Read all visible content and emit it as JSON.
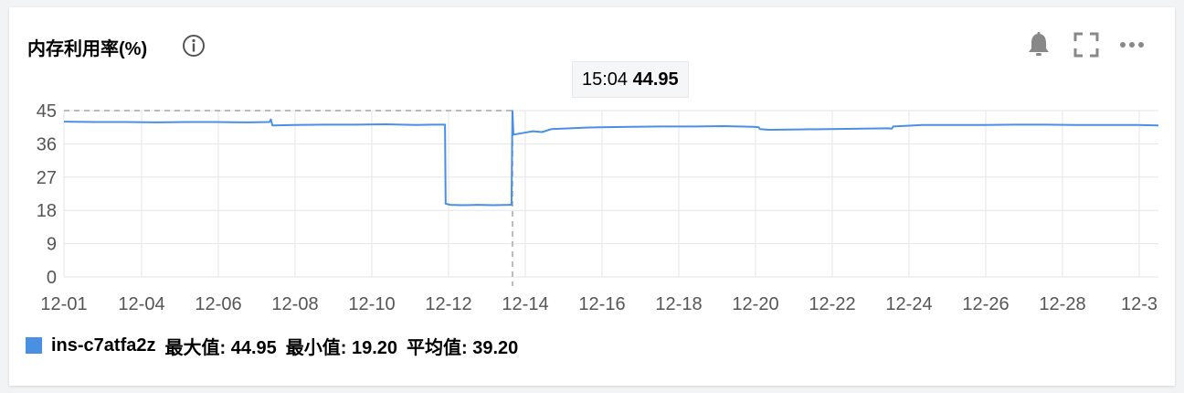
{
  "panel": {
    "title": "内存利用率(%)"
  },
  "toolbar": {
    "icons": [
      "info-icon",
      "bell-icon",
      "fullscreen-icon",
      "more-icon"
    ]
  },
  "colors": {
    "series": "#4a90e2",
    "grid": "#e6e6e6",
    "axis_text": "#555555",
    "crosshair": "#bbbbbb"
  },
  "tooltip": {
    "time": "15:04",
    "value": "44.95"
  },
  "legend": {
    "series_name": "ins-c7atfa2z",
    "max_text": "最大值: 44.95",
    "min_text": "最小值: 19.20",
    "avg_text": "平均值: 39.20"
  },
  "chart_data": {
    "type": "line",
    "title": "内存利用率(%)",
    "xlabel": "",
    "ylabel": "",
    "ylim": [
      0,
      45
    ],
    "yticks": [
      "45",
      "36",
      "27",
      "18",
      "9",
      "0"
    ],
    "xlim_days": [
      0,
      35.7
    ],
    "xticks": [
      "12-01",
      "12-04",
      "12-06",
      "12-08",
      "12-10",
      "12-12",
      "12-14",
      "12-16",
      "12-18",
      "12-20",
      "12-22",
      "12-24",
      "12-26",
      "12-28",
      "12-3"
    ],
    "grid": true,
    "legend_position": "bottom-left",
    "crosshair_x_day": 14.63,
    "series": [
      {
        "name": "ins-c7atfa2z",
        "points": [
          [
            0,
            42.0
          ],
          [
            1.0,
            41.9
          ],
          [
            2.0,
            41.9
          ],
          [
            3.0,
            41.8
          ],
          [
            4.0,
            41.9
          ],
          [
            5.0,
            41.9
          ],
          [
            6.0,
            41.8
          ],
          [
            6.7,
            41.9
          ],
          [
            6.75,
            42.6
          ],
          [
            6.8,
            41.0
          ],
          [
            7.5,
            41.1
          ],
          [
            8.5,
            41.2
          ],
          [
            9.5,
            41.2
          ],
          [
            10.5,
            41.3
          ],
          [
            11.5,
            41.1
          ],
          [
            12.0,
            41.2
          ],
          [
            12.43,
            41.2
          ],
          [
            12.45,
            19.8
          ],
          [
            12.6,
            19.5
          ],
          [
            13.0,
            19.4
          ],
          [
            13.5,
            19.5
          ],
          [
            14.0,
            19.4
          ],
          [
            14.55,
            19.5
          ],
          [
            14.6,
            19.5
          ],
          [
            14.63,
            44.95
          ],
          [
            14.66,
            38.5
          ],
          [
            15.0,
            39.0
          ],
          [
            15.3,
            39.4
          ],
          [
            15.6,
            39.2
          ],
          [
            15.9,
            40.0
          ],
          [
            16.5,
            40.2
          ],
          [
            17.0,
            40.4
          ],
          [
            17.5,
            40.5
          ],
          [
            18.5,
            40.6
          ],
          [
            19.5,
            40.7
          ],
          [
            20.5,
            40.7
          ],
          [
            21.5,
            40.8
          ],
          [
            22.0,
            40.7
          ],
          [
            22.5,
            40.6
          ],
          [
            22.66,
            40.5
          ],
          [
            22.7,
            40.0
          ],
          [
            23.0,
            39.8
          ],
          [
            24.0,
            39.9
          ],
          [
            25.0,
            40.0
          ],
          [
            26.0,
            40.1
          ],
          [
            26.9,
            40.2
          ],
          [
            27.0,
            40.1
          ],
          [
            27.05,
            40.7
          ],
          [
            27.5,
            40.9
          ],
          [
            28.0,
            41.1
          ],
          [
            29.0,
            41.1
          ],
          [
            30.0,
            41.1
          ],
          [
            31.0,
            41.2
          ],
          [
            32.0,
            41.2
          ],
          [
            33.0,
            41.1
          ],
          [
            34.0,
            41.1
          ],
          [
            35.0,
            41.1
          ],
          [
            35.7,
            41.0
          ]
        ]
      }
    ]
  }
}
